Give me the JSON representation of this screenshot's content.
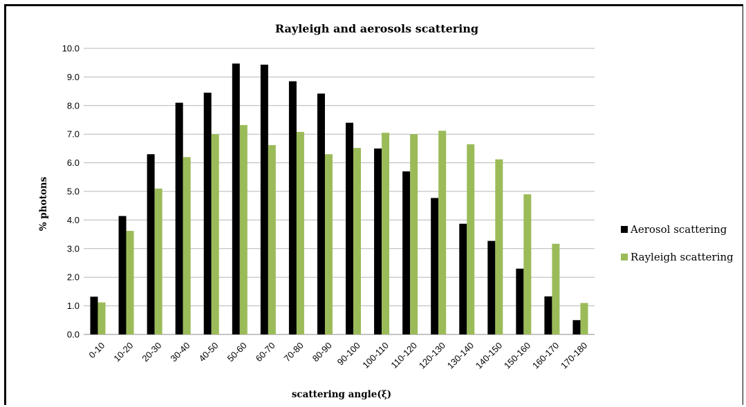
{
  "chart_data": {
    "type": "bar",
    "title": "Rayleigh and aerosols scattering",
    "xlabel": "scattering angle(ξ)",
    "ylabel": "% photons",
    "ylim": [
      0,
      10
    ],
    "yticks": [
      "0.0",
      "1.0",
      "2.0",
      "3.0",
      "4.0",
      "5.0",
      "6.0",
      "7.0",
      "8.0",
      "9.0",
      "10.0"
    ],
    "grid": true,
    "legend_position": "right",
    "categories": [
      "0-10",
      "10-20",
      "20-30",
      "30-40",
      "40-50",
      "50-60",
      "60-70",
      "70-80",
      "80-90",
      "90-100",
      "100-110",
      "110-120",
      "120-130",
      "130-140",
      "140-150",
      "150-160",
      "160-170",
      "170-180"
    ],
    "series": [
      {
        "name": "Aerosol scattering",
        "color": "#000000",
        "values": [
          1.32,
          4.14,
          6.3,
          8.1,
          8.45,
          9.47,
          9.43,
          8.85,
          8.42,
          7.4,
          6.5,
          5.7,
          4.77,
          3.87,
          3.27,
          2.3,
          1.33,
          0.5
        ]
      },
      {
        "name": "Rayleigh scattering",
        "color": "#9bbb59",
        "values": [
          1.12,
          3.62,
          5.1,
          6.2,
          7.0,
          7.32,
          6.62,
          7.08,
          6.3,
          6.52,
          7.05,
          7.0,
          7.12,
          6.65,
          6.12,
          4.9,
          3.17,
          1.1
        ]
      }
    ]
  }
}
